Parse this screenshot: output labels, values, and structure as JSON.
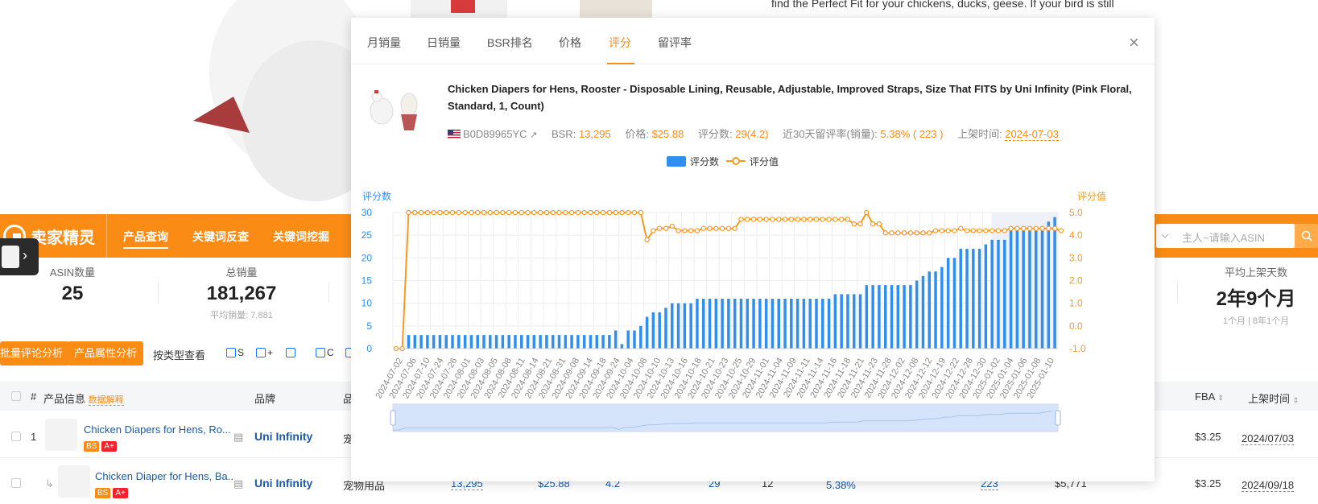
{
  "hero": {
    "desc": "find the Perfect Fit for your chickens, ducks, geese. If your bird is still growing, this is a perfect solution."
  },
  "appbar": {
    "logo": "卖家精灵",
    "nav": [
      "产品查询",
      "关键词反查",
      "关键词挖掘"
    ],
    "asin_placeholder": "主人~请输入ASIN"
  },
  "stats": {
    "asin_label": "ASIN数量",
    "asin_value": "25",
    "sales_label": "总销量",
    "sales_value": "181,267",
    "sales_sub": "平均销量: 7,881",
    "days_label": "平均上架天数",
    "days_value": "2年9个月",
    "days_sub_a": "1个月",
    "days_sub_b": "8年1个月"
  },
  "actions": {
    "review_btn": "批量评论分析",
    "attr_btn": "产品属性分析",
    "by_type": "按类型查看",
    "checks": [
      "S",
      "+",
      "",
      "C",
      ""
    ]
  },
  "table": {
    "headers": {
      "idx": "#",
      "product": "产品信息",
      "hint": "数据解释",
      "brand": "品牌",
      "cat": "品",
      "fba": "FBA",
      "launch": "上架时间"
    },
    "rows": [
      {
        "idx": "1",
        "name": "Chicken Diapers for Hens, Ro...",
        "brand": "Uni Infinity",
        "cat": "宠",
        "fba": "$3.25",
        "date": "2024/07/03"
      },
      {
        "idx": "↳",
        "name": "Chicken Diaper for Hens, Ba..",
        "brand": "Uni Infinity",
        "cat": "宠物用品",
        "bsr": "13,295",
        "price": "$25.88",
        "rating": "4.2",
        "reviews": "29",
        "x": "12",
        "rate": "5.38%",
        "n": "223",
        "rev": "$5,771",
        "fba": "$3.25",
        "date": "2024/09/18"
      }
    ],
    "badge_bs": "BS",
    "badge_a": "A+"
  },
  "modal": {
    "tabs": [
      "月销量",
      "日销量",
      "BSR排名",
      "价格",
      "评分",
      "留评率"
    ],
    "active_tab": 4,
    "title": "Chicken Diapers for Hens, Rooster - Disposable Lining, Reusable, Adjustable, Improved Straps, Size That FITS by Uni Infinity (Pink Floral, Standard, 1, Count)",
    "asin": "B0D89965YC",
    "bsr_label": "BSR:",
    "bsr": "13,295",
    "price_label": "价格:",
    "price": "$25.88",
    "reviews_label": "评分数:",
    "reviews": "29(4.2)",
    "review_rate_label": "近30天留评率(销量):",
    "review_rate": "5.38% ( 223 )",
    "launch_label": "上架时间:",
    "launch": "2024-07-03"
  },
  "chart_data": {
    "type": "bar+line",
    "legend": [
      "评分数",
      "评分值"
    ],
    "legend_position": "top-center",
    "ylabel_left": "评分数",
    "ylabel_right": "评分值",
    "left_ticks": [
      "0",
      "5",
      "10",
      "15",
      "20",
      "25",
      "30"
    ],
    "right_ticks": [
      "-1.0",
      "0.0",
      "1.0",
      "2.0",
      "3.0",
      "4.0",
      "5.0"
    ],
    "ylim_left": [
      0,
      30
    ],
    "ylim_right": [
      -1,
      5
    ],
    "x_labels": [
      "2024-07-02",
      "2024-07-06",
      "2024-07-10",
      "2024-07-24",
      "2024-07-26",
      "2024-08-01",
      "2024-08-03",
      "2024-08-05",
      "2024-08-08",
      "2024-08-11",
      "2024-08-14",
      "2024-08-21",
      "2024-08-31",
      "2024-09-08",
      "2024-09-14",
      "2024-09-18",
      "2024-09-24",
      "2024-10-04",
      "2024-10-08",
      "2024-10-10",
      "2024-10-13",
      "2024-10-16",
      "2024-10-18",
      "2024-10-21",
      "2024-10-23",
      "2024-10-25",
      "2024-10-29",
      "2024-11-01",
      "2024-11-04",
      "2024-11-09",
      "2024-11-11",
      "2024-11-14",
      "2024-11-16",
      "2024-11-18",
      "2024-11-21",
      "2024-11-23",
      "2024-11-28",
      "2024-12-02",
      "2024-12-08",
      "2024-12-12",
      "2024-12-19",
      "2024-12-22",
      "2024-12-28",
      "2024-12-30",
      "2025-01-02",
      "2025-01-04",
      "2025-01-06",
      "2025-01-08",
      "2025-01-10"
    ],
    "bar_values": [
      0,
      0,
      3,
      3,
      3,
      3,
      3,
      3,
      3,
      3,
      3,
      3,
      3,
      3,
      3,
      3,
      3,
      3,
      3,
      3,
      3,
      3,
      3,
      3,
      3,
      3,
      3,
      3,
      3,
      3,
      3,
      3,
      3,
      3,
      3,
      4,
      1,
      4,
      4,
      5,
      7,
      8,
      8,
      9,
      10,
      10,
      10,
      10,
      11,
      11,
      11,
      11,
      11,
      11,
      11,
      11,
      11,
      11,
      11,
      11,
      11,
      11,
      11,
      11,
      11,
      11,
      11,
      11,
      11,
      11,
      12,
      12,
      12,
      12,
      12,
      14,
      14,
      14,
      14,
      14,
      14,
      14,
      14,
      15,
      16,
      17,
      17,
      18,
      20,
      20,
      22,
      22,
      22,
      22,
      23,
      24,
      24,
      24,
      26,
      26,
      26,
      26,
      26,
      26,
      28,
      29
    ],
    "line_values": [
      -1,
      -1,
      5,
      5,
      5,
      5,
      5,
      5,
      5,
      5,
      5,
      5,
      5,
      5,
      5,
      5,
      5,
      5,
      5,
      5,
      5,
      5,
      5,
      5,
      5,
      5,
      5,
      5,
      5,
      5,
      5,
      5,
      5,
      5,
      5,
      5,
      5,
      5,
      5,
      5,
      3.8,
      4.2,
      4.3,
      4.3,
      4.4,
      4.2,
      4.2,
      4.2,
      4.2,
      4.3,
      4.3,
      4.3,
      4.3,
      4.3,
      4.3,
      4.7,
      4.7,
      4.7,
      4.7,
      4.7,
      4.7,
      4.7,
      4.7,
      4.7,
      4.7,
      4.7,
      4.7,
      4.7,
      4.7,
      4.7,
      4.7,
      4.7,
      4.7,
      4.5,
      4.5,
      5,
      4.5,
      4.5,
      4.1,
      4.1,
      4.1,
      4.1,
      4.1,
      4.1,
      4.1,
      4.1,
      4.2,
      4.2,
      4.2,
      4.2,
      4.3,
      4.2,
      4.2,
      4.2,
      4.2,
      4.2,
      4.2,
      4.2,
      4.3,
      4.3,
      4.3,
      4.3,
      4.3,
      4.3,
      4.3,
      4.3,
      4.2
    ],
    "colors": {
      "bar": "#2f8ff0",
      "line": "#f59a23",
      "grid": "#eeeeee",
      "axis_text": "#2f8ff0",
      "right_text": "#f59a23",
      "zoom": "#d6e4fb"
    },
    "grid": true
  }
}
